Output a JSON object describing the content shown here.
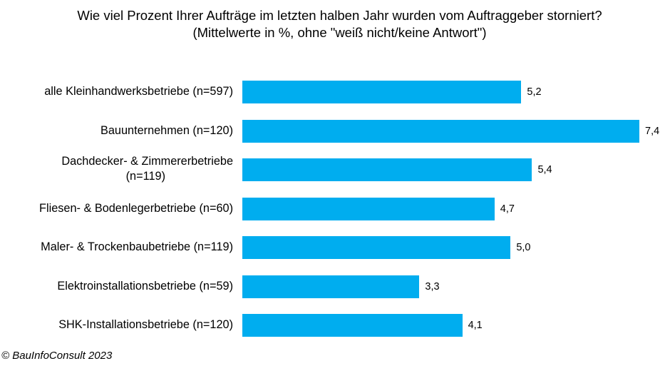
{
  "chart_data": {
    "type": "bar",
    "orientation": "horizontal",
    "title": "Wie viel Prozent Ihrer Aufträge im letzten halben Jahr wurden vom Auftraggeber  storniert?",
    "subtitle": "(Mittelwerte in %, ohne \"weiß nicht/keine Antwort\")",
    "categories": [
      "alle Kleinhandwerksbetriebe (n=597)",
      "Bauunternehmen (n=120)",
      "Dachdecker- & Zimmererbetriebe (n=119)",
      "Fliesen- & Bodenlegerbetriebe (n=60)",
      "Maler- & Trockenbaubetriebe (n=119)",
      "Elektroinstallationsbetriebe (n=59)",
      "SHK-Installationsbetriebe (n=120)"
    ],
    "values": [
      5.2,
      7.4,
      5.4,
      4.7,
      5.0,
      3.3,
      4.1
    ],
    "value_labels": [
      "5,2",
      "7,4",
      "5,4",
      "4,7",
      "5,0",
      "3,3",
      "4,1"
    ],
    "xlabel": "",
    "ylabel": "",
    "xlim": [
      0,
      7.4
    ],
    "grid": false,
    "legend": "none",
    "bar_color": "#00adef"
  },
  "footer": {
    "copyright": "© BauInfoConsult 2023"
  }
}
